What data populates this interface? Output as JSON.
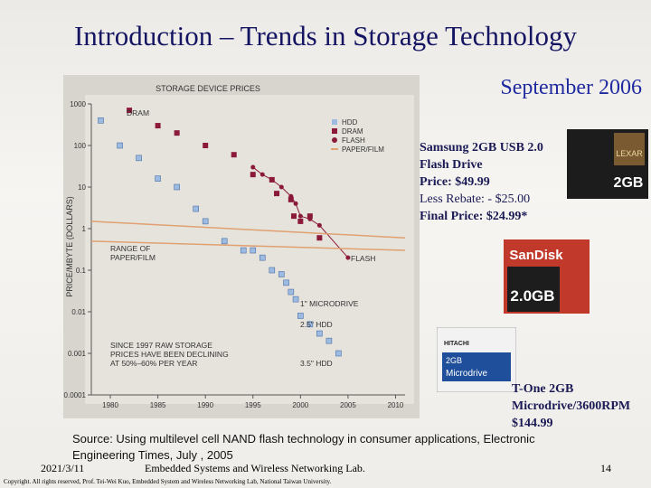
{
  "title": "Introduction – Trends in Storage Technology",
  "date_heading": "September 2006",
  "chart": {
    "type": "scatter",
    "title": "STORAGE DEVICE PRICES",
    "y_label": "PRICE/MBYTE (DOLLARS)",
    "log_y": true,
    "xlim": [
      1978,
      2011
    ],
    "xticks": [
      1980,
      1985,
      1990,
      1995,
      2000,
      2005,
      2010
    ],
    "ylim": [
      0.0001,
      1000
    ],
    "yticks": [
      0.0001,
      0.001,
      0.01,
      0.1,
      1,
      10,
      100,
      1000
    ],
    "series": [
      {
        "name": "HDD",
        "color": "#9dbbe0",
        "marker": "square",
        "x": [
          1979,
          1981,
          1983,
          1985,
          1987,
          1989,
          1990,
          1992,
          1994,
          1995,
          1996,
          1997,
          1998,
          1998.5,
          1999,
          1999.5,
          2000,
          2001,
          2002,
          2003,
          2004
        ],
        "values": [
          400,
          100,
          50,
          16,
          10,
          3,
          1.5,
          0.5,
          0.3,
          0.3,
          0.2,
          0.1,
          0.08,
          0.05,
          0.03,
          0.02,
          0.008,
          0.005,
          0.003,
          0.002,
          0.001
        ]
      },
      {
        "name": "DRAM",
        "color": "#8b1a3a",
        "marker": "square",
        "x": [
          1982,
          1985,
          1987,
          1990,
          1993,
          1995,
          1997,
          1997.5,
          1999,
          1999.3,
          2000,
          2001,
          2002
        ],
        "values": [
          700,
          300,
          200,
          100,
          60,
          20,
          15,
          7,
          5,
          2,
          1.5,
          2,
          0.6
        ]
      },
      {
        "name": "FLASH",
        "color": "#8b1a3a",
        "marker": "circle",
        "x": [
          1995,
          1996,
          1997,
          1998,
          1999,
          1999.5,
          2000,
          2001,
          2002,
          2005
        ],
        "values": [
          30,
          20,
          15,
          10,
          6,
          4,
          2,
          1.7,
          1.2,
          0.2
        ]
      },
      {
        "name": "PAPER/FILM",
        "color": "#e0a070",
        "marker": "band",
        "x": [
          1978,
          2011
        ],
        "values": [
          1.5,
          0.6
        ],
        "values_low": [
          0.5,
          0.3
        ]
      }
    ],
    "annotations": [
      [
        "DRAM"
      ],
      [
        "RANGE OF",
        "PAPER/FILM"
      ],
      [
        "FLASH"
      ],
      [
        "1\" MICRODRIVE"
      ],
      [
        "2.5\" HDD"
      ],
      [
        "3.5\" HDD"
      ],
      [
        "SINCE 1997 RAW STORAGE",
        "PRICES HAVE BEEN DECLINING",
        "AT 50%–60% PER YEAR"
      ]
    ]
  },
  "product_flash": [
    "Samsung 2GB USB 2.0",
    "Flash Drive",
    "Price:  $49.99",
    "Less Rebate:  - $25.00",
    "Final Price:  $24.99*"
  ],
  "cards": {
    "lexar": [
      "LEXAR",
      "2GB"
    ],
    "sandisk": [
      "SanDisk",
      "2.0GB"
    ],
    "hitachi": [
      "HITACHI",
      "2GB",
      "Microdrive"
    ]
  },
  "product_microdrive": [
    "T-One 2GB",
    "Microdrive/3600RPM",
    "$144.99"
  ],
  "source": [
    "Source: Using multilevel cell NAND flash technology in consumer applications, Electronic",
    "Engineering Times, July , 2005"
  ],
  "footer": {
    "date": "2021/3/11",
    "lab": "Embedded Systems and Wireless Networking Lab.",
    "page": "14",
    "copyright": "Copyright. All rights reserved, Prof. Tei-Wei Kuo, Embedded System and Wireless Networking Lab, National Taiwan University."
  }
}
